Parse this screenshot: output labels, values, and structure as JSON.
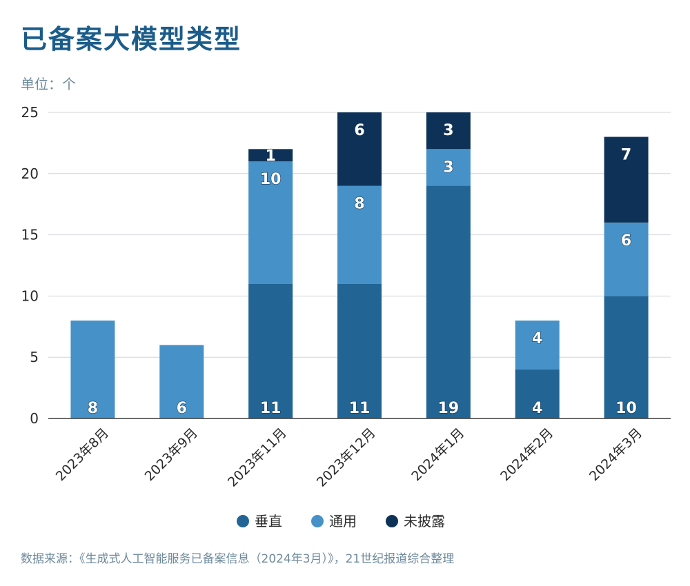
{
  "page": {
    "title": "已备案大模型类型",
    "unit": "单位：个",
    "source": "数据来源：《生成式人工智能服务已备案信息（2024年3月）》，21世纪报道综合整理"
  },
  "chart_data": {
    "type": "bar",
    "stacked": true,
    "title": "已备案大模型类型",
    "ylabel": "单位：个",
    "xlabel": "",
    "ylim": [
      0,
      25
    ],
    "yticks": [
      0,
      5,
      10,
      15,
      20,
      25
    ],
    "grid": true,
    "legend_position": "bottom",
    "categories": [
      "2023年8月",
      "2023年9月",
      "2023年11月",
      "2023年12月",
      "2024年1月",
      "2024年2月",
      "2024年3月"
    ],
    "series": [
      {
        "name": "垂直",
        "color": "#226595",
        "values": [
          0,
          0,
          11,
          11,
          19,
          4,
          10
        ]
      },
      {
        "name": "通用",
        "color": "#4692c8",
        "values": [
          8,
          6,
          10,
          8,
          3,
          4,
          6
        ]
      },
      {
        "name": "未披露",
        "color": "#0e3257",
        "values": [
          0,
          0,
          1,
          6,
          3,
          0,
          7
        ]
      }
    ],
    "data_labels": [
      [
        "",
        "",
        "11",
        "11",
        "19",
        "4",
        "10"
      ],
      [
        "8",
        "6",
        "10",
        "8",
        "3",
        "4",
        "6"
      ],
      [
        "",
        "",
        "1",
        "6",
        "3",
        "",
        "7"
      ]
    ]
  }
}
